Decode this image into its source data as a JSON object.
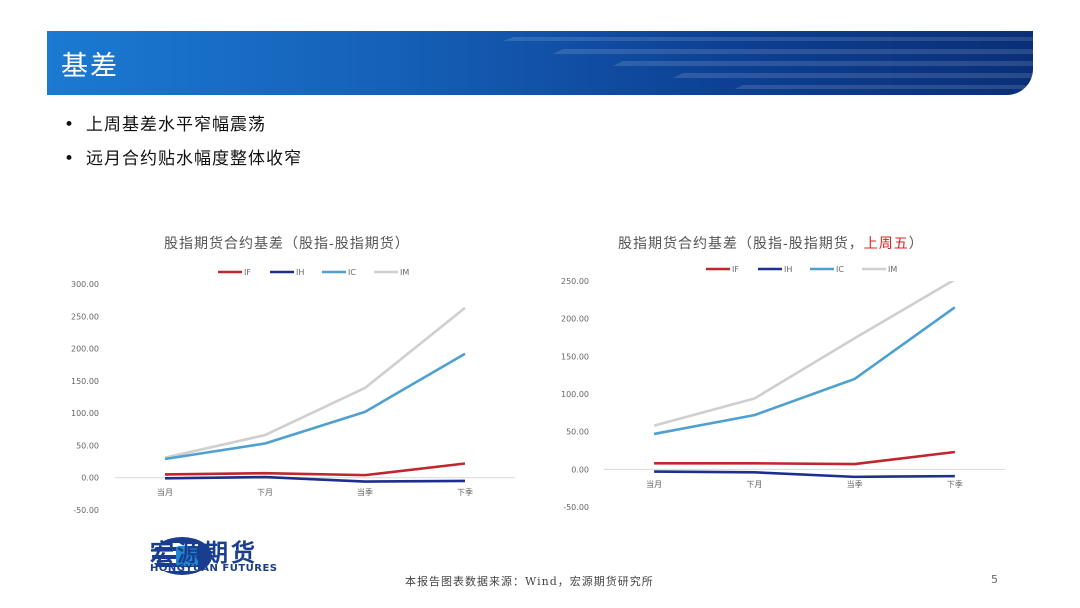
{
  "header": {
    "title": "基差"
  },
  "bullets": [
    "上周基差水平窄幅震荡",
    "远月合约贴水幅度整体收窄"
  ],
  "colors": {
    "IF": "#c0262d",
    "IH": "#1d2f8a",
    "IC": "#4ea0d0",
    "IM": "#cfcfcf"
  },
  "chart_data": [
    {
      "type": "line",
      "title": "股指期货合约基差（股指-股指期货）",
      "categories": [
        "当月",
        "下月",
        "当季",
        "下季"
      ],
      "ylim": [
        -50,
        300
      ],
      "yticks": [
        "300.00",
        "250.00",
        "200.00",
        "150.00",
        "100.00",
        "50.00",
        "0.00",
        "-50.00"
      ],
      "grid": false,
      "legend": "top",
      "series": [
        {
          "name": "IF",
          "values": [
            5,
            7,
            4,
            22
          ]
        },
        {
          "name": "IH",
          "values": [
            -1,
            1,
            -6,
            -5
          ]
        },
        {
          "name": "IC",
          "values": [
            29,
            53,
            102,
            192
          ]
        },
        {
          "name": "IM",
          "values": [
            31,
            66,
            139,
            263
          ]
        }
      ]
    },
    {
      "type": "line",
      "title": "股指期货合约基差（股指-股指期货，",
      "title_highlight": "上周五",
      "title_end": "）",
      "categories": [
        "当月",
        "下月",
        "当季",
        "下季"
      ],
      "ylim": [
        -50,
        250
      ],
      "yticks": [
        "250.00",
        "200.00",
        "150.00",
        "100.00",
        "50.00",
        "0.00",
        "-50.00"
      ],
      "grid": false,
      "legend": "top",
      "series": [
        {
          "name": "IF",
          "values": [
            8,
            8,
            7,
            23
          ]
        },
        {
          "name": "IH",
          "values": [
            -3,
            -4,
            -10,
            -9
          ]
        },
        {
          "name": "IC",
          "values": [
            47,
            72,
            120,
            215
          ]
        },
        {
          "name": "IM",
          "values": [
            58,
            94,
            174,
            252
          ]
        }
      ]
    }
  ],
  "logo": {
    "cn": "宏源期货",
    "en": "HONGYUAN FUTURES"
  },
  "footer": {
    "source": "本报告图表数据来源：Wind，宏源期货研究所",
    "page": "5"
  }
}
